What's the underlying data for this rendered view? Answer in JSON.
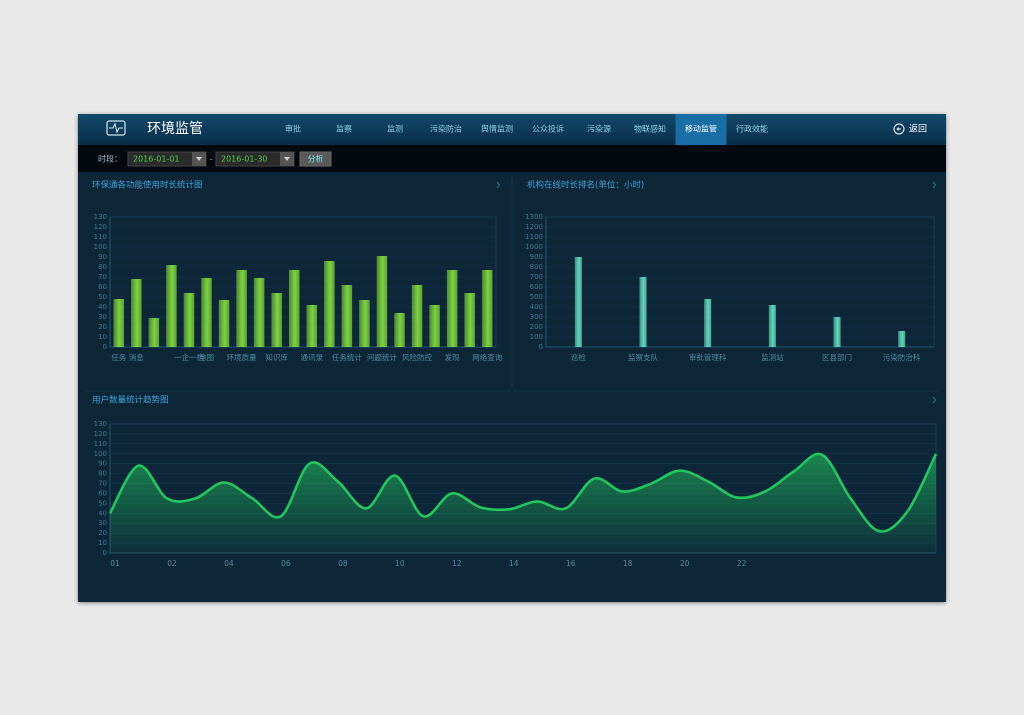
{
  "header": {
    "title": "环境监管",
    "nav": [
      "审批",
      "监察",
      "监测",
      "污染防治",
      "舆情监测",
      "公众投诉",
      "污染源",
      "物联感知",
      "移动监管",
      "行政效能"
    ],
    "active_nav": 8,
    "back": "返回"
  },
  "toolbar": {
    "label": "时段：",
    "start": "2016-01-01",
    "separator": "-",
    "end": "2016-01-30",
    "button": "分析"
  },
  "chart_data": [
    {
      "type": "bar",
      "title": "环保通各功能使用时长统计图",
      "categories": [
        "任务",
        "消息",
        null,
        null,
        "一企一档",
        "地图",
        null,
        "环境质量",
        null,
        "知识库",
        null,
        "通讯录",
        null,
        "任务统计",
        null,
        "问题统计",
        null,
        "风险防控",
        null,
        "发现",
        null,
        "网络查询"
      ],
      "values": [
        48,
        68,
        29,
        82,
        54,
        69,
        47,
        77,
        69,
        54,
        77,
        42,
        86,
        62,
        47,
        91,
        34,
        62,
        42,
        77,
        54,
        77
      ],
      "color": "#7ed33b",
      "ylim": [
        0,
        130
      ],
      "yticks": [
        0,
        10,
        20,
        30,
        40,
        50,
        60,
        70,
        80,
        90,
        100,
        110,
        120,
        130
      ],
      "grid": true
    },
    {
      "type": "bar",
      "title": "机构在线时长排名(单位：小时)",
      "categories": [
        "巡检",
        "监察支队",
        "审批管理科",
        "监测站",
        "区县部门",
        "污染防治科"
      ],
      "values": [
        900,
        700,
        480,
        420,
        300,
        160
      ],
      "color": "#5fd8b8",
      "ylim": [
        0,
        1300
      ],
      "yticks": [
        0,
        100,
        200,
        300,
        400,
        500,
        600,
        700,
        800,
        900,
        1000,
        1100,
        1200,
        1300
      ],
      "grid": true
    },
    {
      "type": "area",
      "title": "用户数量统计趋势图",
      "categories": [
        "01",
        null,
        "02",
        null,
        "04",
        null,
        "06",
        null,
        "08",
        null,
        "10",
        null,
        "12",
        null,
        "14",
        null,
        "16",
        null,
        "18",
        null,
        "20",
        null,
        "22",
        null,
        null,
        null,
        null,
        null,
        null,
        null
      ],
      "values": [
        40,
        88,
        55,
        55,
        71,
        55,
        37,
        90,
        72,
        45,
        78,
        37,
        60,
        46,
        44,
        52,
        45,
        75,
        62,
        70,
        83,
        72,
        56,
        62,
        82,
        99,
        55,
        22,
        42,
        100
      ],
      "color": "#22c55e",
      "ylim": [
        0,
        130
      ],
      "yticks": [
        0,
        10,
        20,
        30,
        40,
        50,
        60,
        70,
        80,
        90,
        100,
        110,
        120,
        130
      ],
      "grid": true
    }
  ]
}
